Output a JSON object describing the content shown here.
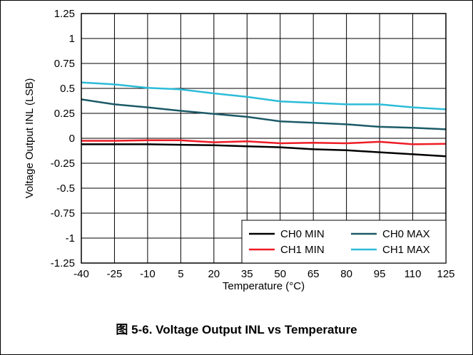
{
  "caption": "图 5-6. Voltage Output INL vs Temperature",
  "chart_data": {
    "type": "line",
    "title": "",
    "xlabel": "Temperature (°C)",
    "ylabel": "Voltage Output INL (LSB)",
    "x": [
      -40,
      -25,
      -10,
      5,
      20,
      35,
      50,
      65,
      80,
      95,
      110,
      125
    ],
    "xlim": [
      -40,
      125
    ],
    "ylim": [
      -1.25,
      1.25
    ],
    "xticks": [
      -40,
      -25,
      -10,
      5,
      20,
      35,
      50,
      65,
      80,
      95,
      110,
      125
    ],
    "yticks": [
      -1.25,
      -1,
      -0.75,
      -0.5,
      -0.25,
      0,
      0.25,
      0.5,
      0.75,
      1,
      1.25
    ],
    "xtick_labels": [
      "-40",
      "-25",
      "-10",
      "5",
      "20",
      "35",
      "50",
      "65",
      "80",
      "95",
      "110",
      "125"
    ],
    "ytick_labels": [
      "-1.25",
      "-1",
      "-0.75",
      "-0.5",
      "-0.25",
      "0",
      "0.25",
      "0.5",
      "0.75",
      "1",
      "1.25"
    ],
    "grid": true,
    "legend_position": "bottom-right",
    "series": [
      {
        "name": "CH0 MIN",
        "color": "#000000",
        "values": [
          -0.06,
          -0.06,
          -0.06,
          -0.065,
          -0.07,
          -0.08,
          -0.09,
          -0.11,
          -0.12,
          -0.14,
          -0.16,
          -0.18
        ]
      },
      {
        "name": "CH0 MAX",
        "color": "#1c5a67",
        "values": [
          0.39,
          0.34,
          0.31,
          0.275,
          0.245,
          0.215,
          0.17,
          0.155,
          0.14,
          0.115,
          0.105,
          0.09
        ]
      },
      {
        "name": "CH1 MIN",
        "color": "#ee1c25",
        "values": [
          -0.025,
          -0.025,
          -0.02,
          -0.02,
          -0.04,
          -0.03,
          -0.05,
          -0.045,
          -0.05,
          -0.035,
          -0.06,
          -0.055
        ]
      },
      {
        "name": "CH1 MAX",
        "color": "#2cbcd8",
        "values": [
          0.56,
          0.54,
          0.505,
          0.49,
          0.45,
          0.415,
          0.37,
          0.355,
          0.34,
          0.34,
          0.31,
          0.29
        ]
      }
    ]
  }
}
